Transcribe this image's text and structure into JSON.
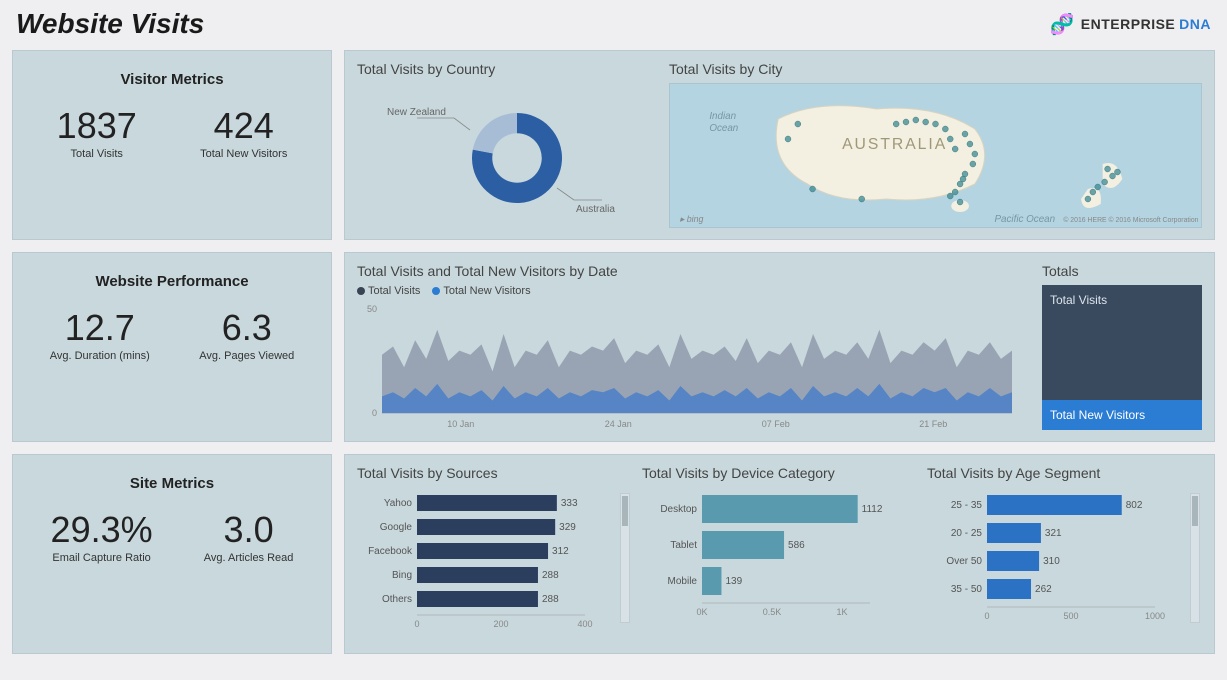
{
  "page": {
    "title": "Website Visits",
    "brand_word1": "ENTERPRISE",
    "brand_word2": "DNA"
  },
  "visitor_metrics": {
    "title": "Visitor Metrics",
    "m1_value": "1837",
    "m1_label": "Total Visits",
    "m2_value": "424",
    "m2_label": "Total New Visitors"
  },
  "website_perf": {
    "title": "Website Performance",
    "m1_value": "12.7",
    "m1_label": "Avg. Duration (mins)",
    "m2_value": "6.3",
    "m2_label": "Avg. Pages Viewed"
  },
  "site_metrics": {
    "title": "Site Metrics",
    "m1_value": "29.3%",
    "m1_label": "Email Capture Ratio",
    "m2_value": "3.0",
    "m2_label": "Avg. Articles Read"
  },
  "country_chart": {
    "title": "Total Visits by Country",
    "type": "donut",
    "labels": {
      "nz": "New Zealand",
      "au": "Australia"
    },
    "values": {
      "au": 0.78,
      "nz": 0.22
    },
    "colors": {
      "au": "#2b5ea3",
      "nz": "#a7bdd6"
    },
    "inner_radius": 0.55,
    "bg": "#c8d8dd"
  },
  "city_chart": {
    "title": "Total Visits by City",
    "map_labels": {
      "indian": "Indian\nOcean",
      "aus": "AUSTRALIA",
      "pacific": "Pacific Ocean",
      "bing": "bing",
      "copy": "© 2016 HERE    © 2016 Microsoft Corporation"
    },
    "dot_color": "#3b8a92",
    "land_color": "#f3efe1",
    "sea_color": "#b4d4e1"
  },
  "area_chart": {
    "title": "Total Visits and Total New Visitors by Date",
    "type": "area",
    "legend": {
      "a": "Total Visits",
      "b": "Total New Visitors"
    },
    "legend_colors": {
      "a": "#384354",
      "b": "#2b7cd3"
    },
    "ylim": [
      0,
      50
    ],
    "ytick": [
      0,
      50
    ],
    "x_ticks": [
      "10 Jan",
      "24 Jan",
      "07 Feb",
      "21 Feb"
    ],
    "series_a_color": "#8f9bab",
    "series_b_color": "#4a7fc8",
    "series_a": [
      28,
      32,
      22,
      35,
      26,
      40,
      25,
      30,
      28,
      33,
      20,
      38,
      22,
      30,
      28,
      35,
      22,
      30,
      28,
      32,
      30,
      36,
      24,
      30,
      28,
      33,
      22,
      38,
      26,
      30,
      28,
      32,
      25,
      36,
      24,
      30,
      28,
      34,
      22,
      38,
      26,
      30,
      28,
      34,
      26,
      40,
      24,
      30,
      28,
      34,
      30,
      36,
      22,
      30,
      28,
      34,
      26,
      30
    ],
    "series_b": [
      8,
      10,
      7,
      12,
      8,
      14,
      7,
      10,
      8,
      11,
      6,
      13,
      7,
      10,
      8,
      12,
      7,
      10,
      8,
      11,
      10,
      12,
      7,
      10,
      8,
      11,
      6,
      13,
      8,
      10,
      8,
      11,
      8,
      12,
      7,
      10,
      8,
      12,
      6,
      13,
      8,
      10,
      8,
      12,
      8,
      14,
      7,
      10,
      8,
      12,
      10,
      12,
      6,
      10,
      8,
      12,
      8,
      10
    ]
  },
  "totals_panel": {
    "title": "Totals",
    "row1": "Total Visits",
    "row2": "Total New Visitors"
  },
  "sources_chart": {
    "title": "Total Visits by Sources",
    "type": "bar-horizontal",
    "color": "#2c3e5e",
    "xlim": [
      0,
      400
    ],
    "xticks": [
      0,
      200,
      400
    ],
    "rows": [
      {
        "label": "Yahoo",
        "value": 333
      },
      {
        "label": "Google",
        "value": 329
      },
      {
        "label": "Facebook",
        "value": 312
      },
      {
        "label": "Bing",
        "value": 288
      },
      {
        "label": "Others",
        "value": 288
      }
    ]
  },
  "device_chart": {
    "title": "Total Visits by Device Category",
    "type": "bar-horizontal",
    "color": "#5a9aae",
    "xlim": [
      0,
      1200
    ],
    "xticks_labels": [
      "0K",
      "0.5K",
      "1K"
    ],
    "xticks_values": [
      0,
      500,
      1000
    ],
    "rows": [
      {
        "label": "Desktop",
        "value": 1112
      },
      {
        "label": "Tablet",
        "value": 586
      },
      {
        "label": "Mobile",
        "value": 139
      }
    ]
  },
  "age_chart": {
    "title": "Total Visits by Age Segment",
    "type": "bar-horizontal",
    "color": "#2b72c4",
    "xlim": [
      0,
      1000
    ],
    "xticks": [
      0,
      500,
      1000
    ],
    "rows": [
      {
        "label": "25 - 35",
        "value": 802
      },
      {
        "label": "20 - 25",
        "value": 321
      },
      {
        "label": "Over 50",
        "value": 310
      },
      {
        "label": "35 - 50",
        "value": 262
      }
    ]
  }
}
